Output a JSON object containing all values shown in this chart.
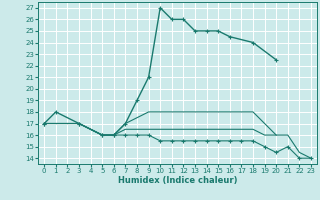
{
  "xlabel": "Humidex (Indice chaleur)",
  "xlim": [
    -0.5,
    23.5
  ],
  "ylim": [
    13.5,
    27.5
  ],
  "xticks": [
    0,
    1,
    2,
    3,
    4,
    5,
    6,
    7,
    8,
    9,
    10,
    11,
    12,
    13,
    14,
    15,
    16,
    17,
    18,
    19,
    20,
    21,
    22,
    23
  ],
  "yticks": [
    14,
    15,
    16,
    17,
    18,
    19,
    20,
    21,
    22,
    23,
    24,
    25,
    26,
    27
  ],
  "bg_color": "#cceaea",
  "grid_color": "#ffffff",
  "line_color": "#1a7a6e",
  "lines": [
    {
      "x": [
        0,
        1,
        3,
        5,
        6,
        7,
        8,
        9,
        10,
        11,
        12,
        13,
        14,
        15,
        16,
        18,
        20
      ],
      "y": [
        17,
        18,
        17,
        16,
        16,
        17,
        19,
        21,
        27,
        26,
        26,
        25,
        25,
        25,
        24.5,
        24,
        22.5
      ],
      "marker": true,
      "lw": 1.0
    },
    {
      "x": [
        0,
        3,
        5,
        6,
        7,
        8,
        9,
        10,
        11,
        12,
        13,
        14,
        15,
        16,
        17,
        18,
        20
      ],
      "y": [
        17,
        17,
        16,
        16,
        17,
        17.5,
        18,
        18,
        18,
        18,
        18,
        18,
        18,
        18,
        18,
        18,
        16
      ],
      "marker": false,
      "lw": 0.8
    },
    {
      "x": [
        0,
        3,
        5,
        6,
        7,
        8,
        9,
        10,
        11,
        12,
        13,
        14,
        15,
        16,
        17,
        18,
        19,
        21,
        22,
        23
      ],
      "y": [
        17,
        17,
        16,
        16,
        16.5,
        16.5,
        16.5,
        16.5,
        16.5,
        16.5,
        16.5,
        16.5,
        16.5,
        16.5,
        16.5,
        16.5,
        16,
        16,
        14.5,
        14
      ],
      "marker": false,
      "lw": 0.8
    },
    {
      "x": [
        0,
        3,
        5,
        6,
        7,
        8,
        9,
        10,
        11,
        12,
        13,
        14,
        15,
        16,
        17,
        18,
        19,
        20,
        21,
        22,
        23
      ],
      "y": [
        17,
        17,
        16,
        16,
        16,
        16,
        16,
        15.5,
        15.5,
        15.5,
        15.5,
        15.5,
        15.5,
        15.5,
        15.5,
        15.5,
        15,
        14.5,
        15,
        14,
        14
      ],
      "marker": true,
      "lw": 0.8
    }
  ]
}
